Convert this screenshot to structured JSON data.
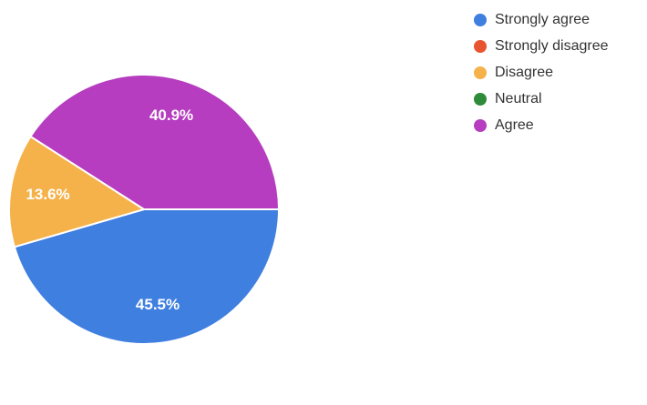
{
  "chart_data": {
    "type": "pie",
    "title": "",
    "categories": [
      "Strongly agree",
      "Strongly disagree",
      "Disagree",
      "Neutral",
      "Agree"
    ],
    "values": [
      45.5,
      0,
      13.6,
      0,
      40.9
    ],
    "labels": [
      "45.5%",
      "",
      "13.6%",
      "",
      "40.9%"
    ],
    "colors": [
      "#3f7fe0",
      "#e8542f",
      "#f5b24a",
      "#2e8b3a",
      "#b63cc0"
    ],
    "legend_position": "right"
  }
}
